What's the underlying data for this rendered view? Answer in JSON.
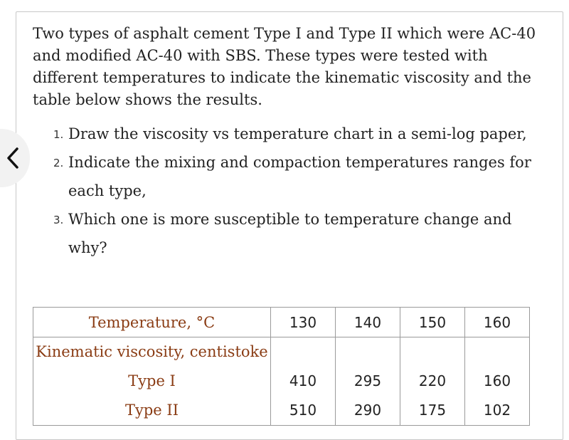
{
  "problem": {
    "intro": "Two types of asphalt cement Type I and Type II which were AC-40 and modified AC-40 with SBS. These types were tested with different temperatures to indicate the kinematic viscosity and the table below shows the results.",
    "questions": [
      {
        "num": "1.",
        "text": "Draw the viscosity vs temperature chart in a semi-log paper,"
      },
      {
        "num": "2.",
        "text": "Indicate the mixing and compaction temperatures ranges for each type,"
      },
      {
        "num": "3.",
        "text": "Which one is more susceptible to temperature change and why?"
      }
    ]
  },
  "table": {
    "header_label": "Temperature, °C",
    "temperatures": [
      "130",
      "140",
      "150",
      "160"
    ],
    "subheader_label": "Kinematic viscosity, centistoke",
    "rows": [
      {
        "label": "Type I",
        "values": [
          "410",
          "295",
          "220",
          "160"
        ]
      },
      {
        "label": "Type II",
        "values": [
          "510",
          "290",
          "175",
          "102"
        ]
      }
    ]
  },
  "icons": {
    "back": "chevron-left-icon"
  },
  "colors": {
    "label_text": "#8a3c14",
    "body_text": "#222222",
    "border": "#9a9a9a"
  }
}
